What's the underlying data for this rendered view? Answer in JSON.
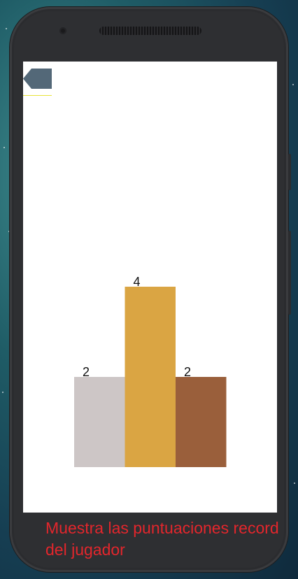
{
  "caption": "Muestra las puntuaciones record del jugador",
  "back_button": {
    "icon": "back-arrow-icon",
    "color": "#536878"
  },
  "colors": {
    "screen_bg": "#ffffff",
    "caption": "#e3262c",
    "underline": "#e8e43a"
  },
  "chart_data": {
    "type": "bar",
    "categories": [
      "",
      "",
      ""
    ],
    "values": [
      2,
      4,
      2
    ],
    "value_labels": [
      "2",
      "4",
      "2"
    ],
    "colors": [
      "#cdc6c6",
      "#daa543",
      "#9a5f3b"
    ],
    "title": "",
    "xlabel": "",
    "ylabel": "",
    "ylim": [
      0,
      5
    ]
  }
}
